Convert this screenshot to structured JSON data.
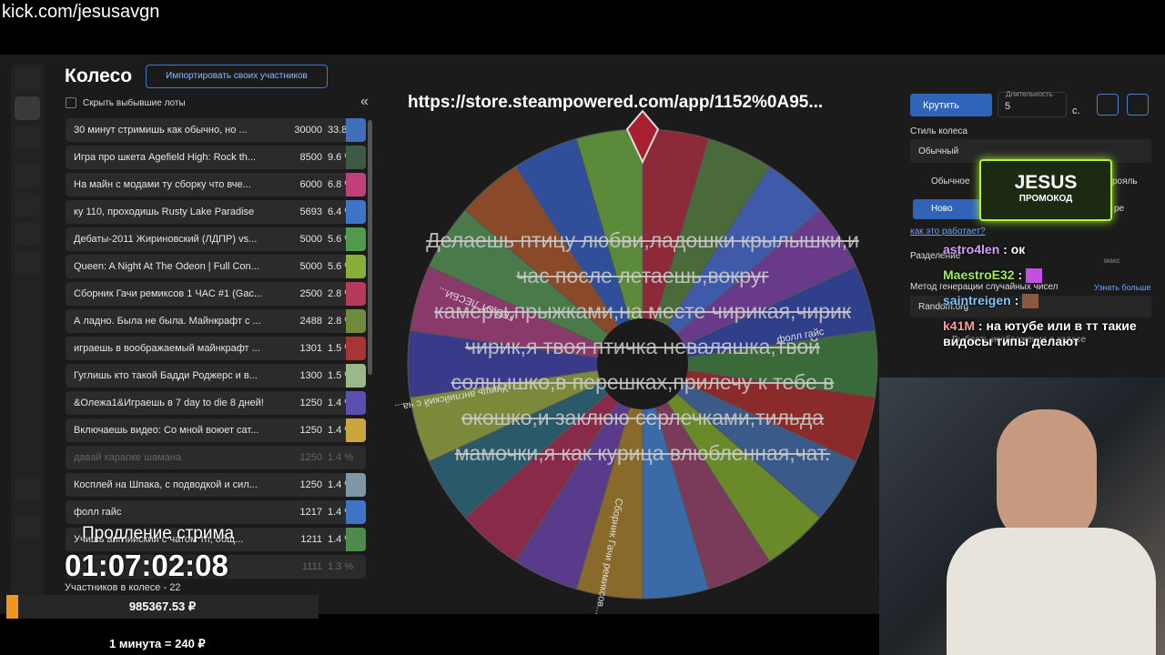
{
  "stream_url": "kick.com/jesusavgn",
  "header": {
    "title": "Колесо",
    "import_button": "Импортировать своих участников",
    "hide_checkbox": "Скрыть выбывшие лоты"
  },
  "lots": [
    {
      "name": "30 минут стримишь как обычно, но ...",
      "amount": 30000,
      "percent": "33.8 %",
      "color": "#3f6fb8"
    },
    {
      "name": "Игра про шкета Agefield High: Rock th...",
      "amount": 8500,
      "percent": "9.6 %",
      "color": "#3e5a45"
    },
    {
      "name": "На майн с модами ту сборку что вче...",
      "amount": 6000,
      "percent": "6.8 %",
      "color": "#c0407a"
    },
    {
      "name": "ку 110, проходишь Rusty Lake Paradise",
      "amount": 5693,
      "percent": "6.4 %",
      "color": "#3f73c8"
    },
    {
      "name": "Дебаты-2011 Жириновский (ЛДПР) vs...",
      "amount": 5000,
      "percent": "5.6 %",
      "color": "#4f9a4c"
    },
    {
      "name": "Queen: A Night At The Odeon | Full Con...",
      "amount": 5000,
      "percent": "5.6 %",
      "color": "#8aae3a"
    },
    {
      "name": "Сборник Гачи ремиксов 1 ЧАС #1 (Gac...",
      "amount": 2500,
      "percent": "2.8 %",
      "color": "#b83a5a"
    },
    {
      "name": "А ладно. Была не была. Майнкрафт с ...",
      "amount": 2488,
      "percent": "2.8 %",
      "color": "#6f8a3a"
    },
    {
      "name": "играешь в воображаемый майнкрафт ...",
      "amount": 1301,
      "percent": "1.5 %",
      "color": "#a83434"
    },
    {
      "name": "Гуглишь кто такой Бадди Роджерс и в...",
      "amount": 1300,
      "percent": "1.5 %",
      "color": "#9bb88a"
    },
    {
      "name": "&Олежа1&Играешь в 7 day to die 8 дней!",
      "amount": 1250,
      "percent": "1.4 %",
      "color": "#5a4fb0"
    },
    {
      "name": "Включаешь видео: Со мной воюет сат...",
      "amount": 1250,
      "percent": "1.4 %",
      "color": "#c9a73a"
    },
    {
      "name": "давай караоке шамана",
      "amount": 1250,
      "percent": "1.4 %",
      "color": "#2a2a2a"
    },
    {
      "name": "Косплей на Шпака, с подводкой и сил...",
      "amount": 1250,
      "percent": "1.4 %",
      "color": "#7f95a8"
    },
    {
      "name": "фолл гайс",
      "amount": 1217,
      "percent": "1.4 %",
      "color": "#3f73c8"
    },
    {
      "name": "Учишь английский с чатом тп, общ...",
      "amount": 1211,
      "percent": "1.4 %",
      "color": "#4f8a4c"
    },
    {
      "name": "...",
      "amount": 1111,
      "percent": "1.3 %",
      "color": "#2a2a2a"
    }
  ],
  "wheel": {
    "title": "https://store.steampowered.com/app/1152%0A95...",
    "segment_labels": [
      "фолл гайс",
      "Учишь английский с ча...",
      "ГЕВ ОТ ЛЕСБИ...",
      "Сборник Гачи ремиксов..."
    ],
    "overlay_text": "Делаешь птицу любви,ладошки крылышки,и час после летаешь,вокруг камеры,прыжками,на месте чирикая,чирик чирик,я твоя птичка неваляшка,твой солнышко,в перешках,прилечу к тебе в окошко,и заклюю серлечками,тильда мамочки,я как курица влюбленная,чат."
  },
  "settings": {
    "spin_button": "Крутить",
    "duration_label": "Длительность",
    "duration_value": "5",
    "duration_unit": "с.",
    "style_label": "Стиль колеса",
    "style_value": "Обычный",
    "mode_a": "Обычное",
    "mode_b": "рояль",
    "mode_c": "Ново",
    "mode_d": "ре",
    "how_link": "как это работает?",
    "split_label": "Разделение",
    "max_label": "макс",
    "rng_label": "Метод генерации случайных чисел",
    "rng_link": "Узнать больше",
    "rng_value": "Random.org",
    "image_label": "Выбрать изображение в колесе"
  },
  "promo": {
    "name": "JESUS",
    "caption": "ПРОМОКОД"
  },
  "chat": [
    {
      "user": "astro4len",
      "text": "ок"
    },
    {
      "user": "MaestroE32",
      "text": ""
    },
    {
      "user": "saintreigen",
      "text": ""
    },
    {
      "user": "k41M",
      "text": "на ютубе или в тт такие видосы типы делают"
    }
  ],
  "footer": {
    "timer_label": "Продление стрима",
    "timer": "01:07:02:08",
    "participants": "Участников в колесе - 22",
    "total": "985367.53 ₽",
    "rate": "1 минута = 240 ₽"
  }
}
